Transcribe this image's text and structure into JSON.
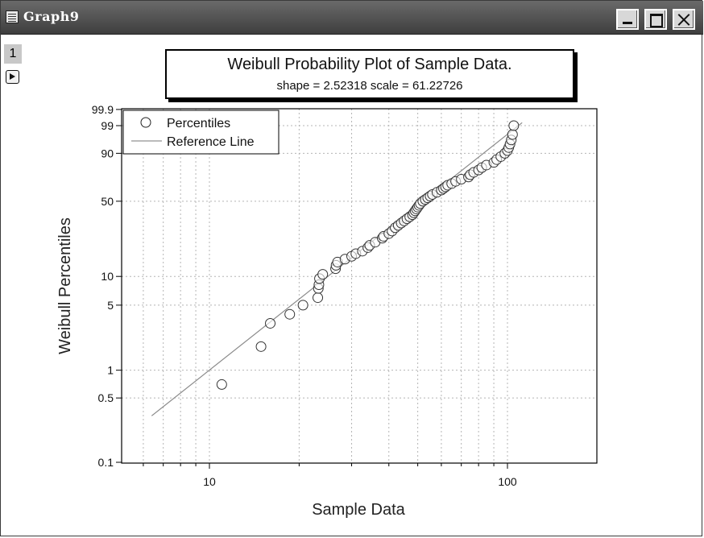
{
  "window": {
    "title": "Graph9",
    "layer_label": "1"
  },
  "chart_data": {
    "type": "scatter",
    "title": "Weibull Probability Plot of Sample Data.",
    "subtitle": "shape = 2.52318  scale = 61.22726",
    "xlabel": "Sample Data",
    "ylabel": "Weibull Percentiles",
    "x_scale": "log",
    "y_scale": "weibull-probability",
    "xlim": [
      5,
      200
    ],
    "ylim": [
      0.1,
      99.9
    ],
    "x_ticks": [
      {
        "value": 10,
        "label": "10"
      },
      {
        "value": 100,
        "label": "100"
      }
    ],
    "y_ticks": [
      {
        "value": 0.1,
        "label": "0.1"
      },
      {
        "value": 0.5,
        "label": "0.5"
      },
      {
        "value": 1,
        "label": "1"
      },
      {
        "value": 5,
        "label": "5"
      },
      {
        "value": 10,
        "label": "10"
      },
      {
        "value": 50,
        "label": "50"
      },
      {
        "value": 90,
        "label": "90"
      },
      {
        "value": 99,
        "label": "99"
      },
      {
        "value": 99.9,
        "label": "99.9"
      }
    ],
    "grid": true,
    "legend": {
      "position": "top-left",
      "entries": [
        {
          "label": "Percentiles",
          "symbol": "open-circle"
        },
        {
          "label": "Reference Line",
          "symbol": "line"
        }
      ]
    },
    "series": [
      {
        "name": "Percentiles",
        "kind": "scatter",
        "x": [
          11.0,
          14.9,
          16.0,
          18.6,
          20.6,
          23.1,
          23.2,
          23.3,
          23.4,
          24.0,
          26.5,
          26.6,
          26.9,
          28.5,
          30.0,
          31.0,
          32.6,
          34.0,
          34.5,
          36.0,
          38.0,
          38.4,
          40.0,
          41.0,
          42.0,
          43.0,
          44.0,
          45.0,
          46.0,
          47.0,
          48.0,
          48.5,
          49.0,
          49.5,
          50.0,
          50.5,
          51.0,
          52.0,
          53.0,
          54.0,
          55.0,
          56.0,
          58.0,
          60.0,
          61.0,
          62.0,
          63.0,
          65.0,
          67.0,
          70.0,
          74.0,
          75.0,
          77.0,
          80.0,
          82.0,
          85.0,
          90.0,
          92.0,
          95.0,
          98.0,
          100.0,
          101.0,
          102.0,
          103.0,
          104.0,
          105.0
        ],
        "y": [
          0.7,
          1.8,
          3.2,
          4.0,
          5.0,
          6.0,
          7.5,
          8.2,
          9.5,
          10.5,
          12.0,
          13.0,
          14.0,
          15.0,
          16.0,
          17.0,
          18.0,
          19.5,
          20.5,
          22.0,
          24.0,
          25.0,
          26.5,
          28.0,
          30.0,
          31.5,
          33.0,
          34.5,
          36.0,
          37.5,
          39.0,
          40.5,
          42.0,
          43.5,
          45.0,
          46.5,
          48.0,
          50.0,
          51.5,
          53.0,
          54.5,
          56.0,
          58.0,
          60.0,
          61.5,
          63.0,
          64.5,
          66.0,
          68.0,
          70.0,
          72.0,
          74.0,
          76.0,
          78.0,
          80.0,
          82.0,
          84.0,
          86.0,
          88.0,
          90.0,
          91.5,
          93.0,
          94.5,
          96.0,
          97.5,
          99.0
        ]
      },
      {
        "name": "Reference Line",
        "kind": "line",
        "x": [
          6.4,
          112
        ],
        "y": [
          0.32,
          99.3
        ]
      }
    ]
  }
}
